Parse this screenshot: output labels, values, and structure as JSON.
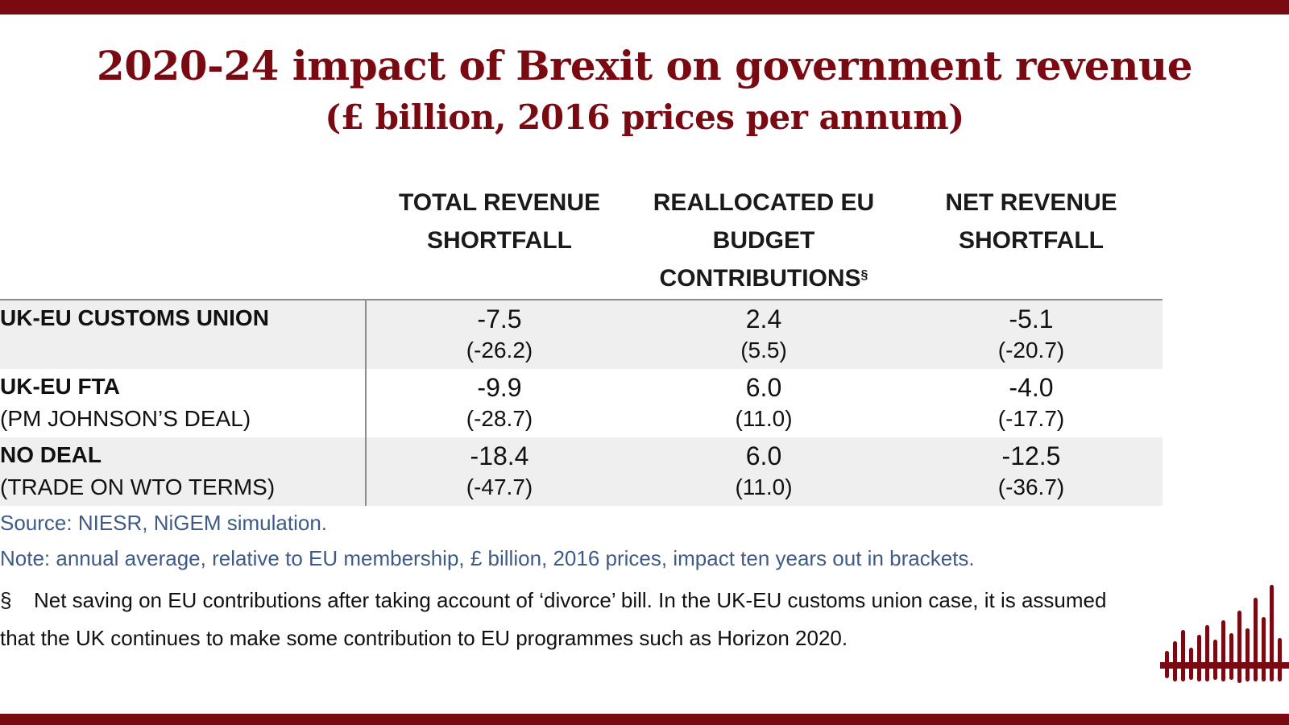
{
  "title": "2020-24 impact of Brexit on government revenue",
  "subtitle": "(£ billion, 2016 prices per annum)",
  "columns": [
    {
      "line1": "TOTAL REVENUE",
      "line2": "SHORTFALL",
      "line3": "",
      "sup": ""
    },
    {
      "line1": "REALLOCATED EU",
      "line2": "BUDGET",
      "line3": "CONTRIBUTIONS",
      "sup": "§"
    },
    {
      "line1": "NET REVENUE",
      "line2": "SHORTFALL",
      "line3": "",
      "sup": ""
    }
  ],
  "rows": [
    {
      "label": "UK-EU CUSTOMS UNION",
      "sublabel": "",
      "cells": [
        {
          "value": "-7.5",
          "bracket": "(-26.2)"
        },
        {
          "value": "2.4",
          "bracket": "(5.5)"
        },
        {
          "value": "-5.1",
          "bracket": "(-20.7)"
        }
      ]
    },
    {
      "label": "UK-EU FTA",
      "sublabel": "(PM JOHNSON’S DEAL)",
      "cells": [
        {
          "value": "-9.9",
          "bracket": "(-28.7)"
        },
        {
          "value": "6.0",
          "bracket": "(11.0)"
        },
        {
          "value": "-4.0",
          "bracket": "(-17.7)"
        }
      ]
    },
    {
      "label": "NO DEAL",
      "sublabel": "(TRADE ON WTO TERMS)",
      "cells": [
        {
          "value": "-18.4",
          "bracket": "(-47.7)"
        },
        {
          "value": "6.0",
          "bracket": "(11.0)"
        },
        {
          "value": "-12.5",
          "bracket": "(-36.7)"
        }
      ]
    }
  ],
  "source": "Source: NIESR, NiGEM simulation.",
  "note": "Note: annual average, relative to EU membership, £ billion, 2016 prices, impact ten years out in brackets.",
  "footnote": {
    "symbol": "§",
    "line1": "Net saving on EU contributions after taking account of ‘divorce’ bill.  In the UK-EU customs union case, it is assumed",
    "line2": "that the UK continues to make some contribution to EU programmes such as Horizon 2020."
  },
  "colors": {
    "brand": "#7a0a12",
    "note_text": "#3e5b86",
    "row_shade": "#efefef"
  },
  "logo_icon": "soundwave-bars-logo"
}
